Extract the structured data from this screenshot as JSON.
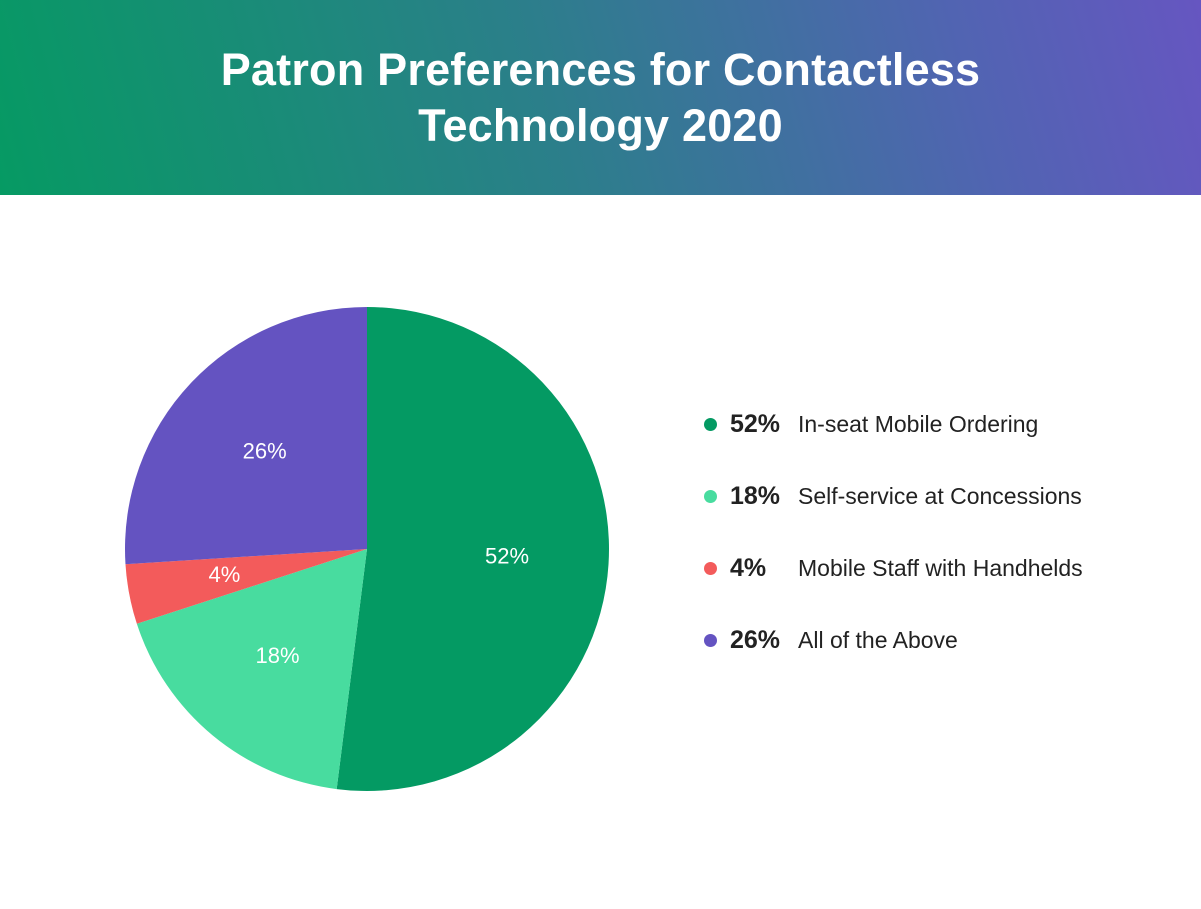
{
  "chart_data": {
    "type": "pie",
    "title": "Patron Preferences for Contactless Technology 2020",
    "slices": [
      {
        "label": "In-seat Mobile Ordering",
        "value": 52,
        "display": "52%",
        "color": "#049a63"
      },
      {
        "label": "Self-service at Concessions",
        "value": 18,
        "display": "18%",
        "color": "#48dc9f"
      },
      {
        "label": "Mobile Staff with Handhelds",
        "value": 4,
        "display": "4%",
        "color": "#f35b5b"
      },
      {
        "label": "All of the Above",
        "value": 26,
        "display": "26%",
        "color": "#6453c1"
      }
    ],
    "start_angle_deg": 0,
    "direction": "clockwise",
    "legend_position": "right"
  }
}
